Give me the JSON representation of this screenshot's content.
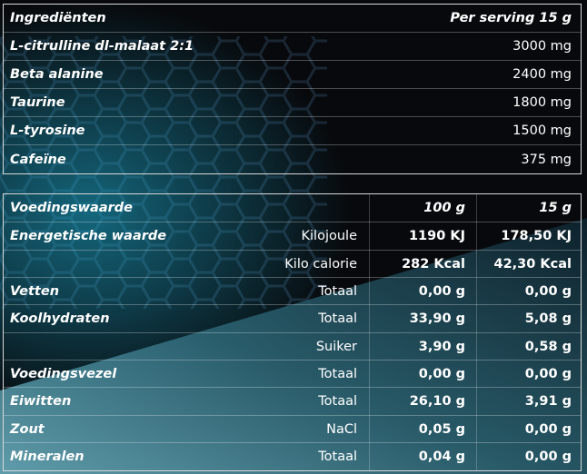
{
  "ingredients": {
    "header": {
      "name": "Ingrediënten",
      "amount": "Per serving 15 g"
    },
    "rows": [
      {
        "name": "L-citrulline dl-malaat 2:1",
        "amount": "3000 mg"
      },
      {
        "name": "Beta alanine",
        "amount": "2400 mg"
      },
      {
        "name": "Taurine",
        "amount": "1800 mg"
      },
      {
        "name": "L-tyrosine",
        "amount": "1500 mg"
      },
      {
        "name": "Cafeïne",
        "amount": "375 mg"
      }
    ]
  },
  "nutrition": {
    "header": {
      "name": "Voedingswaarde",
      "per100": "100 g",
      "per15": "15 g"
    },
    "rows": [
      {
        "name": "Energetische waarde",
        "unit": "Kilojoule",
        "per100": "1190 KJ",
        "per15": "178,50 KJ"
      },
      {
        "name": "",
        "unit": "Kilo calorie",
        "per100": "282 Kcal",
        "per15": "42,30 Kcal"
      },
      {
        "name": "Vetten",
        "unit": "Totaal",
        "per100": "0,00 g",
        "per15": "0,00 g"
      },
      {
        "name": "Koolhydraten",
        "unit": "Totaal",
        "per100": "33,90 g",
        "per15": "5,08 g"
      },
      {
        "name": "",
        "unit": "Suiker",
        "per100": "3,90 g",
        "per15": "0,58 g"
      },
      {
        "name": "Voedingsvezel",
        "unit": "Totaal",
        "per100": "0,00 g",
        "per15": "0,00 g"
      },
      {
        "name": "Eiwitten",
        "unit": "Totaal",
        "per100": "26,10 g",
        "per15": "3,91 g"
      },
      {
        "name": "Zout",
        "unit": "NaCl",
        "per100": "0,05 g",
        "per15": "0,00 g"
      },
      {
        "name": "Mineralen",
        "unit": "Totaal",
        "per100": "0,04 g",
        "per15": "0,00 g"
      }
    ]
  }
}
